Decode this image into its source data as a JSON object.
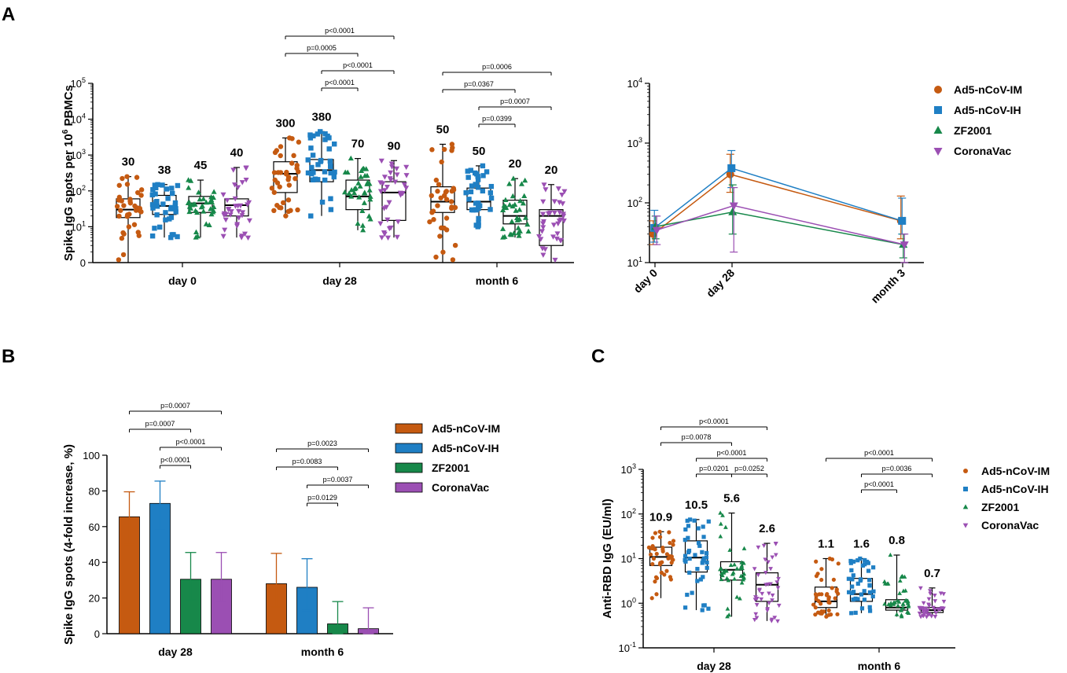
{
  "colors": {
    "Ad5-nCoV-IM": "#c55a11",
    "Ad5-nCoV-IH": "#1f7fc4",
    "ZF2001": "#17884a",
    "CoronaVac": "#9b4fb3"
  },
  "chart_data": [
    {
      "panel": "A",
      "type": "box",
      "ylabel": "Spike IgG spots per 10^6 PBMCs",
      "ylabel_main": "Spike IgG spots per 10",
      "ylabel_exp": "6",
      "ylabel_tail": " PBMCs",
      "yscale": "log",
      "ylim": [
        1,
        100000
      ],
      "yticks": [
        {
          "b": "0",
          "e": ""
        },
        {
          "b": "10",
          "e": "1"
        },
        {
          "b": "10",
          "e": "2"
        },
        {
          "b": "10",
          "e": "3"
        },
        {
          "b": "10",
          "e": "4"
        },
        {
          "b": "10",
          "e": "5"
        }
      ],
      "categories": [
        "day 0",
        "day 28",
        "month 6"
      ],
      "series_names": [
        "Ad5-nCoV-IM",
        "Ad5-nCoV-IH",
        "ZF2001",
        "CoronaVac"
      ],
      "groups": [
        {
          "category": "day 0",
          "series": "Ad5-nCoV-IM",
          "median": 30,
          "q1": 18,
          "q3": 60,
          "min": 1,
          "max": 250,
          "label": "30"
        },
        {
          "category": "day 0",
          "series": "Ad5-nCoV-IH",
          "median": 38,
          "q1": 22,
          "q3": 75,
          "min": 5,
          "max": 150,
          "label": "38"
        },
        {
          "category": "day 0",
          "series": "ZF2001",
          "median": 45,
          "q1": 25,
          "q3": 70,
          "min": 5,
          "max": 200,
          "label": "45"
        },
        {
          "category": "day 0",
          "series": "CoronaVac",
          "median": 40,
          "q1": 20,
          "q3": 60,
          "min": 5,
          "max": 450,
          "label": "40"
        },
        {
          "category": "day 28",
          "series": "Ad5-nCoV-IM",
          "median": 300,
          "q1": 90,
          "q3": 650,
          "min": 20,
          "max": 3000,
          "label": "300"
        },
        {
          "category": "day 28",
          "series": "Ad5-nCoV-IH",
          "median": 380,
          "q1": 180,
          "q3": 750,
          "min": 20,
          "max": 4500,
          "label": "380"
        },
        {
          "category": "day 28",
          "series": "ZF2001",
          "median": 70,
          "q1": 30,
          "q3": 200,
          "min": 8,
          "max": 800,
          "label": "70"
        },
        {
          "category": "day 28",
          "series": "CoronaVac",
          "median": 90,
          "q1": 15,
          "q3": 180,
          "min": 5,
          "max": 700,
          "label": "90"
        },
        {
          "category": "month 6",
          "series": "Ad5-nCoV-IM",
          "median": 50,
          "q1": 25,
          "q3": 130,
          "min": 1,
          "max": 2000,
          "label": "50"
        },
        {
          "category": "month 6",
          "series": "Ad5-nCoV-IH",
          "median": 50,
          "q1": 30,
          "q3": 120,
          "min": 10,
          "max": 500,
          "label": "50"
        },
        {
          "category": "month 6",
          "series": "ZF2001",
          "median": 20,
          "q1": 12,
          "q3": 55,
          "min": 5,
          "max": 220,
          "label": "20"
        },
        {
          "category": "month 6",
          "series": "CoronaVac",
          "median": 20,
          "q1": 3,
          "q3": 30,
          "min": 1,
          "max": 150,
          "label": "20"
        }
      ],
      "comparisons": [
        {
          "category": "day 28",
          "from": 0,
          "to": 3,
          "level": 5,
          "p": "p<0.0001"
        },
        {
          "category": "day 28",
          "from": 0,
          "to": 2,
          "level": 4,
          "p": "p=0.0005"
        },
        {
          "category": "day 28",
          "from": 1,
          "to": 3,
          "level": 3,
          "p": "p<0.0001"
        },
        {
          "category": "day 28",
          "from": 1,
          "to": 2,
          "level": 2,
          "p": "p<0.0001"
        },
        {
          "category": "month 6",
          "from": 0,
          "to": 3,
          "level": 4,
          "p": "p=0.0006"
        },
        {
          "category": "month 6",
          "from": 0,
          "to": 2,
          "level": 3,
          "p": "p=0.0367"
        },
        {
          "category": "month 6",
          "from": 1,
          "to": 3,
          "level": 2,
          "p": "p=0.0007"
        },
        {
          "category": "month 6",
          "from": 1,
          "to": 2,
          "level": 1,
          "p": "p=0.0399"
        }
      ]
    },
    {
      "panel": "A-right",
      "type": "line",
      "yscale": "log",
      "ylim": [
        10,
        10000
      ],
      "yticks": [
        {
          "b": "10",
          "e": "1"
        },
        {
          "b": "10",
          "e": "2"
        },
        {
          "b": "10",
          "e": "3"
        },
        {
          "b": "10",
          "e": "4"
        }
      ],
      "x": [
        "day 0",
        "day 28",
        "month 3"
      ],
      "x_positions": [
        0,
        28,
        90
      ],
      "series": [
        {
          "name": "Ad5-nCoV-IM",
          "marker": "circle",
          "values": [
            30,
            300,
            50
          ],
          "err_low": [
            20,
            150,
            25
          ],
          "err_high": [
            50,
            650,
            130
          ]
        },
        {
          "name": "Ad5-nCoV-IH",
          "marker": "square",
          "values": [
            38,
            380,
            50
          ],
          "err_low": [
            22,
            180,
            30
          ],
          "err_high": [
            75,
            750,
            120
          ]
        },
        {
          "name": "ZF2001",
          "marker": "triangle",
          "values": [
            40,
            70,
            20
          ],
          "err_low": [
            25,
            30,
            12
          ],
          "err_high": [
            60,
            200,
            30
          ]
        },
        {
          "name": "CoronaVac",
          "marker": "triangle-down",
          "values": [
            35,
            90,
            20
          ],
          "err_low": [
            20,
            15,
            10
          ],
          "err_high": [
            60,
            180,
            30
          ]
        }
      ],
      "legend": "right"
    },
    {
      "panel": "B",
      "type": "bar",
      "ylabel": "Spike IgG spots (4-fold increase, %)",
      "yscale": "linear",
      "ylim": [
        0,
        100
      ],
      "yticks": [
        "0",
        "20",
        "40",
        "60",
        "80",
        "100"
      ],
      "categories": [
        "day 28",
        "month 6"
      ],
      "series": [
        {
          "name": "Ad5-nCoV-IM",
          "values": [
            65.5,
            28
          ],
          "err_low": [
            50,
            15
          ],
          "err_high": [
            79.5,
            45
          ]
        },
        {
          "name": "Ad5-nCoV-IH",
          "values": [
            73,
            26
          ],
          "err_low": [
            58,
            13
          ],
          "err_high": [
            85.5,
            42
          ]
        },
        {
          "name": "ZF2001",
          "values": [
            30.5,
            5.5
          ],
          "err_low": [
            19,
            0
          ],
          "err_high": [
            45.5,
            18
          ]
        },
        {
          "name": "CoronaVac",
          "values": [
            30.5,
            2.8
          ],
          "err_low": [
            18,
            0
          ],
          "err_high": [
            45.5,
            14.5
          ]
        }
      ],
      "comparisons": [
        {
          "category": "day 28",
          "from": 0,
          "to": 3,
          "level": 4,
          "p": "p=0.0007"
        },
        {
          "category": "day 28",
          "from": 0,
          "to": 2,
          "level": 3,
          "p": "p=0.0007"
        },
        {
          "category": "day 28",
          "from": 1,
          "to": 3,
          "level": 2,
          "p": "p<0.0001"
        },
        {
          "category": "day 28",
          "from": 1,
          "to": 2,
          "level": 1,
          "p": "p<0.0001"
        },
        {
          "category": "month 6",
          "from": 0,
          "to": 3,
          "level": 4,
          "p": "p=0.0023"
        },
        {
          "category": "month 6",
          "from": 0,
          "to": 2,
          "level": 3,
          "p": "p=0.0083"
        },
        {
          "category": "month 6",
          "from": 1,
          "to": 3,
          "level": 2,
          "p": "p=0.0037"
        },
        {
          "category": "month 6",
          "from": 1,
          "to": 2,
          "level": 1,
          "p": "p=0.0129"
        }
      ],
      "legend": "right"
    },
    {
      "panel": "C",
      "type": "box",
      "ylabel": "Anti-RBD IgG (EU/ml)",
      "yscale": "log",
      "ylim": [
        0.1,
        1000
      ],
      "yticks": [
        {
          "b": "10",
          "e": "-1"
        },
        {
          "b": "10",
          "e": "0"
        },
        {
          "b": "10",
          "e": "1"
        },
        {
          "b": "10",
          "e": "2"
        },
        {
          "b": "10",
          "e": "3"
        }
      ],
      "categories": [
        "day 28",
        "month 6"
      ],
      "series_names": [
        "Ad5-nCoV-IM",
        "Ad5-nCoV-IH",
        "ZF2001",
        "CoronaVac"
      ],
      "groups": [
        {
          "category": "day 28",
          "series": "Ad5-nCoV-IM",
          "median": 10.9,
          "q1": 7,
          "q3": 18,
          "min": 1.3,
          "max": 40,
          "label": "10.9"
        },
        {
          "category": "day 28",
          "series": "Ad5-nCoV-IH",
          "median": 10.5,
          "q1": 5,
          "q3": 25,
          "min": 0.7,
          "max": 75,
          "label": "10.5"
        },
        {
          "category": "day 28",
          "series": "ZF2001",
          "median": 5.6,
          "q1": 3.3,
          "q3": 8.5,
          "min": 0.5,
          "max": 105,
          "label": "5.6"
        },
        {
          "category": "day 28",
          "series": "CoronaVac",
          "median": 2.6,
          "q1": 1.1,
          "q3": 4.8,
          "min": 0.4,
          "max": 22,
          "label": "2.6"
        },
        {
          "category": "month 6",
          "series": "Ad5-nCoV-IM",
          "median": 1.1,
          "q1": 0.8,
          "q3": 2.3,
          "min": 0.5,
          "max": 10,
          "label": "1.1"
        },
        {
          "category": "month 6",
          "series": "Ad5-nCoV-IH",
          "median": 1.6,
          "q1": 1.1,
          "q3": 3.6,
          "min": 0.6,
          "max": 10,
          "label": "1.6"
        },
        {
          "category": "month 6",
          "series": "ZF2001",
          "median": 0.8,
          "q1": 0.7,
          "q3": 1.2,
          "min": 0.5,
          "max": 12,
          "label": "0.8"
        },
        {
          "category": "month 6",
          "series": "CoronaVac",
          "median": 0.7,
          "q1": 0.62,
          "q3": 0.8,
          "min": 0.5,
          "max": 2.2,
          "label": "0.7"
        }
      ],
      "comparisons": [
        {
          "category": "day 28",
          "from": 0,
          "to": 3,
          "level": 4,
          "p": "p<0.0001"
        },
        {
          "category": "day 28",
          "from": 0,
          "to": 2,
          "level": 3,
          "p": "p=0.0078"
        },
        {
          "category": "day 28",
          "from": 1,
          "to": 3,
          "level": 2,
          "p": "p<0.0001"
        },
        {
          "category": "day 28",
          "from": 1,
          "to": 2,
          "level": 1,
          "p": "p=0.0201"
        },
        {
          "category": "day 28",
          "from": 2,
          "to": 3,
          "level": 1,
          "p": "p=0.0252"
        },
        {
          "category": "month 6",
          "from": 0,
          "to": 3,
          "level": 3,
          "p": "p<0.0001"
        },
        {
          "category": "month 6",
          "from": 1,
          "to": 3,
          "level": 2,
          "p": "p=0.0036"
        },
        {
          "category": "month 6",
          "from": 1,
          "to": 2,
          "level": 1,
          "p": "p<0.0001"
        }
      ],
      "legend": "right"
    }
  ],
  "labels": {
    "panel_a": "A",
    "panel_b": "B",
    "panel_c": "C"
  }
}
